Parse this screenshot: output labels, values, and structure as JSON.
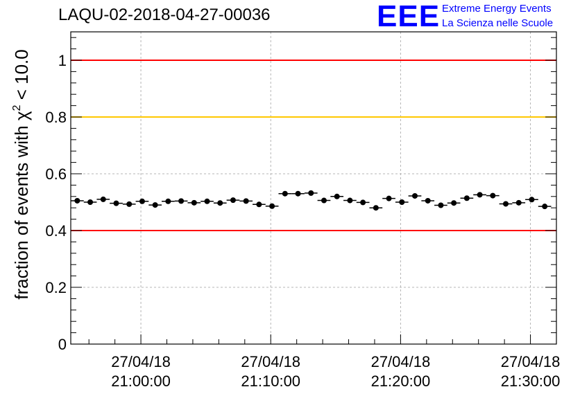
{
  "header": {
    "run_id": "LAQU-02-2018-04-27-00036"
  },
  "logo": {
    "mark": "EEE",
    "line1": "Extreme Energy Events",
    "line2": "La Scienza nelle Scuole",
    "color": "#0000ff"
  },
  "chart_data": {
    "type": "scatter",
    "title": "LAQU-02-2018-04-27-00036",
    "ylabel_prefix": "fraction of events with ",
    "ylabel_symbol": "χ",
    "ylabel_exponent": "2",
    "ylabel_suffix": " < 10.0",
    "xlabel": "",
    "ylim": [
      0,
      1.1
    ],
    "xlim_minutes": [
      -5.4,
      32.0
    ],
    "yticks": [
      0,
      0.2,
      0.4,
      0.6,
      0.8,
      1
    ],
    "ytick_labels": [
      "0",
      "0.2",
      "0.4",
      "0.6",
      "0.8",
      "1"
    ],
    "xticks": [
      {
        "minute": 0,
        "date": "27/04/18",
        "time": "21:00:00"
      },
      {
        "minute": 10,
        "date": "27/04/18",
        "time": "21:10:00"
      },
      {
        "minute": 20,
        "date": "27/04/18",
        "time": "21:20:00"
      },
      {
        "minute": 30,
        "date": "27/04/18",
        "time": "21:30:00"
      }
    ],
    "grid": true,
    "reference_lines": [
      {
        "y": 1.0,
        "color": "#ff0000"
      },
      {
        "y": 0.8,
        "color": "#ffc800"
      },
      {
        "y": 0.4,
        "color": "#ff0000"
      }
    ],
    "bin_width_minutes": 1.0,
    "marker_color": "#000000",
    "series": [
      {
        "name": "fraction",
        "x": [
          -4.9,
          -3.9,
          -2.9,
          -1.9,
          -0.9,
          0.1,
          1.1,
          2.1,
          3.1,
          4.1,
          5.1,
          6.1,
          7.1,
          8.1,
          9.1,
          10.1,
          11.1,
          12.1,
          13.1,
          14.1,
          15.1,
          16.1,
          17.1,
          18.1,
          19.1,
          20.1,
          21.1,
          22.1,
          23.1,
          24.1,
          25.1,
          26.1,
          27.1,
          28.1,
          29.1,
          30.1,
          31.1
        ],
        "y": [
          0.505,
          0.5,
          0.51,
          0.496,
          0.493,
          0.503,
          0.49,
          0.503,
          0.504,
          0.498,
          0.503,
          0.497,
          0.507,
          0.504,
          0.492,
          0.486,
          0.53,
          0.53,
          0.532,
          0.506,
          0.52,
          0.506,
          0.499,
          0.48,
          0.513,
          0.5,
          0.522,
          0.505,
          0.489,
          0.497,
          0.514,
          0.526,
          0.523,
          0.494,
          0.498,
          0.509,
          0.485
        ],
        "yerr": [
          0.009,
          0.009,
          0.009,
          0.009,
          0.009,
          0.009,
          0.009,
          0.009,
          0.009,
          0.009,
          0.009,
          0.009,
          0.009,
          0.009,
          0.009,
          0.009,
          0.009,
          0.009,
          0.009,
          0.009,
          0.009,
          0.009,
          0.009,
          0.009,
          0.009,
          0.009,
          0.009,
          0.009,
          0.009,
          0.009,
          0.009,
          0.009,
          0.009,
          0.009,
          0.009,
          0.009,
          0.009
        ]
      }
    ]
  }
}
